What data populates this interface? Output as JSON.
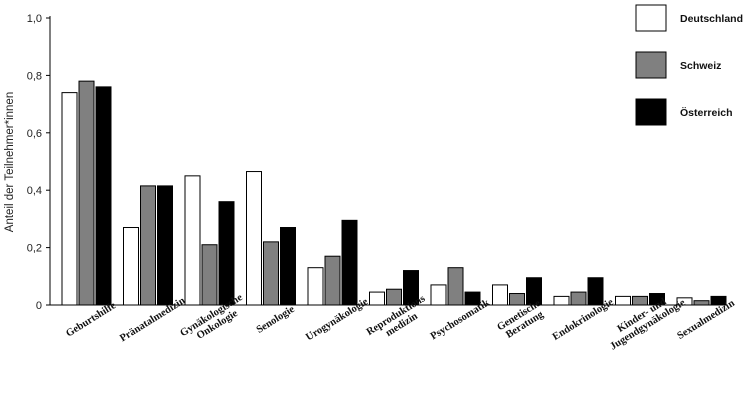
{
  "chart_data": {
    "type": "bar",
    "ylabel": "Anteil der Teilnehmer*innen",
    "ylim": [
      0,
      1.0
    ],
    "yticks": [
      "0",
      "0,2",
      "0,4",
      "0,6",
      "0,8",
      "1,0"
    ],
    "categories": [
      [
        "Geburtshilfe"
      ],
      [
        "Pränatalmedizin"
      ],
      [
        "Gynäkologische",
        "Onkologie"
      ],
      [
        "Senologie"
      ],
      [
        "Urogynäkologie"
      ],
      [
        "Reproduktions",
        "medizin"
      ],
      [
        "Psychosomatik"
      ],
      [
        "Genetische",
        "Beratung"
      ],
      [
        "Endokrinologie"
      ],
      [
        "Kinder- und",
        "Jugendgynäkologie"
      ],
      [
        "Sexualmedizin"
      ]
    ],
    "series": [
      {
        "name": "Deutschland",
        "color": "#ffffff",
        "values": [
          0.74,
          0.27,
          0.45,
          0.465,
          0.13,
          0.045,
          0.07,
          0.07,
          0.03,
          0.03,
          0.025
        ]
      },
      {
        "name": "Schweiz",
        "color": "#808080",
        "values": [
          0.78,
          0.415,
          0.21,
          0.22,
          0.17,
          0.055,
          0.13,
          0.04,
          0.045,
          0.03,
          0.015
        ]
      },
      {
        "name": "Österreich",
        "color": "#000000",
        "values": [
          0.76,
          0.415,
          0.36,
          0.27,
          0.295,
          0.12,
          0.045,
          0.095,
          0.095,
          0.04,
          0.03
        ]
      }
    ],
    "grid": false,
    "legend_position": "top-right"
  }
}
